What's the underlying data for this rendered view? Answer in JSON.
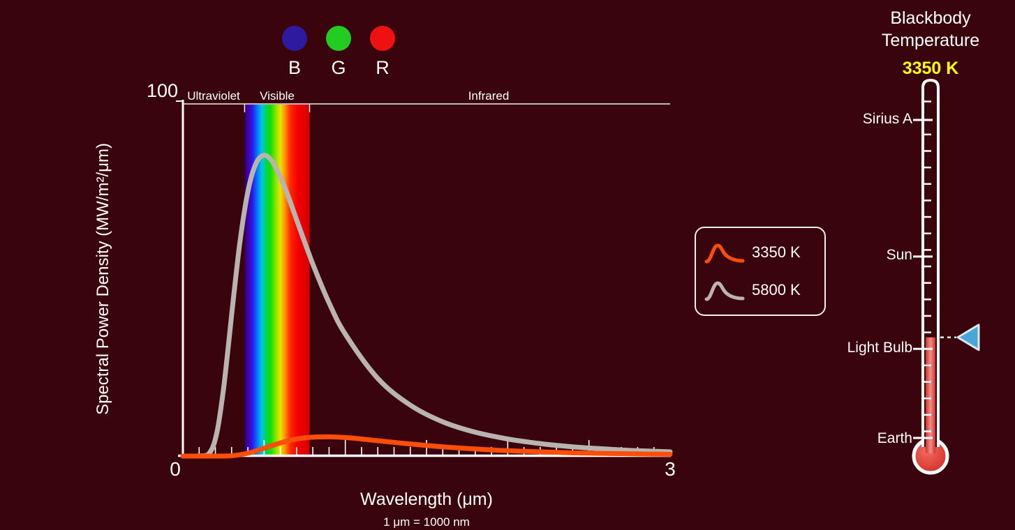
{
  "background_color": "#3a040c",
  "bgr_indicator": {
    "circles": [
      {
        "label": "B",
        "color": "#2e1a9e"
      },
      {
        "label": "G",
        "color": "#22cc22"
      },
      {
        "label": "R",
        "color": "#ee1111"
      }
    ]
  },
  "chart_data": {
    "type": "line",
    "title": "",
    "xlabel": "Wavelength (μm)",
    "xlabel_note": "1 μm  =  1000 nm",
    "ylabel": "Spectral Power Density (MW/m²/μm)",
    "xlim": [
      0,
      3
    ],
    "ylim": [
      0,
      100
    ],
    "x_min_label": "0",
    "x_max_label": "3",
    "y_max_label": "100",
    "x_minor_tick_step": 0.1,
    "x_major_tick_step": 0.5,
    "grid": false,
    "legend_position": "right",
    "regions": [
      {
        "label": "Ultraviolet"
      },
      {
        "label": "Visible"
      },
      {
        "label": "Infrared"
      }
    ],
    "spectrum_band": {
      "from": 0.38,
      "to": 0.78,
      "colors": [
        {
          "offset": 0.0,
          "color": "#2b0066"
        },
        {
          "offset": 0.05,
          "color": "#4400a8"
        },
        {
          "offset": 0.12,
          "color": "#2b17e8"
        },
        {
          "offset": 0.2,
          "color": "#0080ff"
        },
        {
          "offset": 0.27,
          "color": "#00c8e0"
        },
        {
          "offset": 0.33,
          "color": "#00d455"
        },
        {
          "offset": 0.4,
          "color": "#10e000"
        },
        {
          "offset": 0.48,
          "color": "#88e400"
        },
        {
          "offset": 0.55,
          "color": "#eae300"
        },
        {
          "offset": 0.62,
          "color": "#ff9500"
        },
        {
          "offset": 0.7,
          "color": "#ff2a00"
        },
        {
          "offset": 0.82,
          "color": "#f40000"
        },
        {
          "offset": 1.0,
          "color": "#d40000"
        }
      ]
    },
    "series": [
      {
        "name": "5800 K",
        "color": "#b9b4b0",
        "x": [
          0,
          0.05,
          0.1,
          0.15,
          0.18,
          0.2,
          0.22,
          0.25,
          0.28,
          0.3,
          0.35,
          0.4,
          0.45,
          0.5,
          0.55,
          0.6,
          0.65,
          0.7,
          0.8,
          0.9,
          1.0,
          1.2,
          1.4,
          1.6,
          1.8,
          2.0,
          2.2,
          2.4,
          2.6,
          2.8,
          3.0
        ],
        "values": [
          0,
          0,
          0.05,
          0.3,
          2.1,
          4.8,
          9.2,
          18.8,
          30.9,
          39.6,
          59.6,
          74.2,
          82.1,
          84.4,
          82.7,
          78.3,
          72.7,
          66.3,
          53.9,
          43.0,
          34.2,
          21.8,
          14.3,
          9.6,
          6.7,
          4.8,
          3.5,
          2.6,
          2.0,
          1.5,
          1.2
        ]
      },
      {
        "name": "3350 K",
        "color": "#fb4e0a",
        "x": [
          0,
          0.1,
          0.2,
          0.3,
          0.4,
          0.5,
          0.6,
          0.7,
          0.8,
          0.9,
          1.0,
          1.1,
          1.2,
          1.4,
          1.6,
          1.8,
          2.0,
          2.2,
          2.4,
          2.6,
          2.8,
          3.0
        ],
        "values": [
          0,
          0,
          0,
          0.1,
          0.8,
          2.2,
          3.7,
          4.8,
          5.3,
          5.4,
          5.2,
          4.8,
          4.3,
          3.4,
          2.6,
          2.0,
          1.5,
          1.2,
          0.9,
          0.75,
          0.6,
          0.5
        ]
      }
    ]
  },
  "legend": {
    "items": [
      {
        "label": "3350 K",
        "color": "#fb4e0a"
      },
      {
        "label": "5800 K",
        "color": "#b9b4b0"
      }
    ]
  },
  "temperature_panel": {
    "title_line1": "Blackbody",
    "title_line2": "Temperature",
    "value": "3350 K",
    "value_color": "#ffff00",
    "thermometer": {
      "temperature_kelvin": 3350,
      "labels": [
        {
          "text": "Sirius A"
        },
        {
          "text": "Sun"
        },
        {
          "text": "Light Bulb"
        },
        {
          "text": "Earth"
        }
      ],
      "fluid_colors": [
        "#c8362e",
        "#f58c84",
        "#c8362e"
      ],
      "bulb_colors": [
        "#f06a62",
        "#d02820"
      ],
      "pointer_color": "#4aa6d6"
    }
  }
}
